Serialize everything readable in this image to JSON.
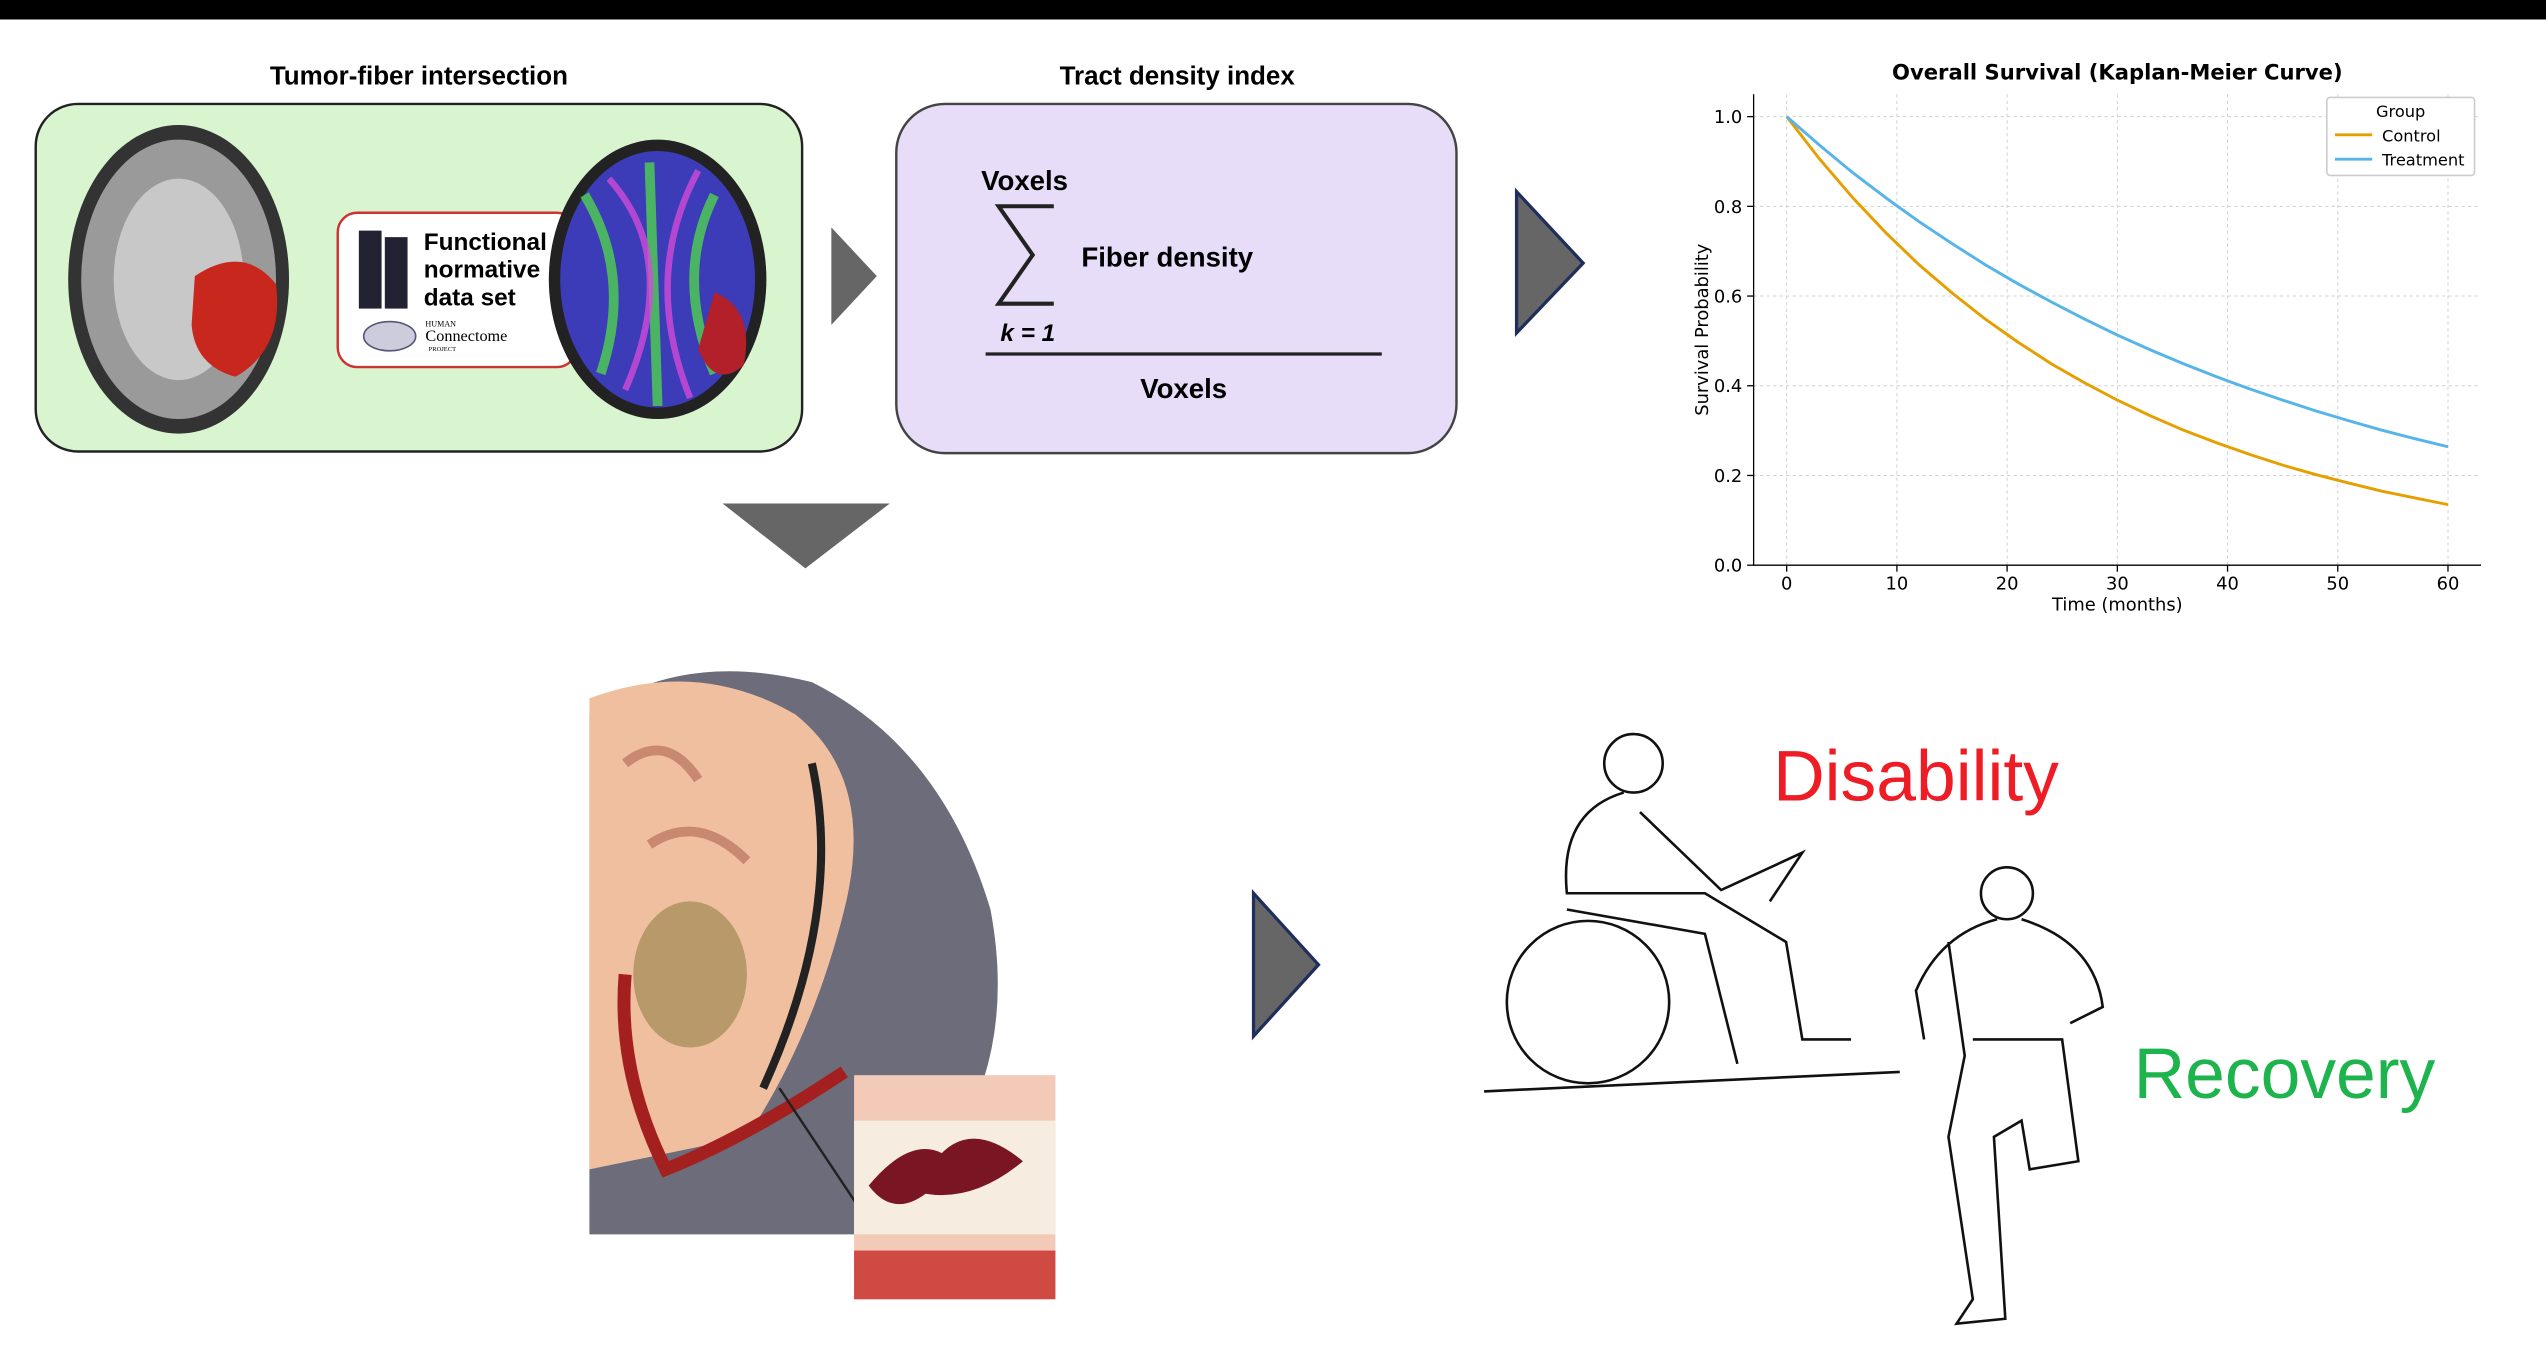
{
  "panels": {
    "intersection": {
      "title": "Tumor-fiber intersection",
      "dataset_lines": [
        "Functional",
        "normative",
        "data set"
      ],
      "logo_lines": [
        "HUMAN",
        "Connectome",
        "PROJECT"
      ]
    },
    "density": {
      "title": "Tract density index",
      "numerator_top": "Voxels",
      "numerator": "Fiber density",
      "index": "k = 1",
      "denominator": "Voxels"
    },
    "outcomes": {
      "disability": "Disability",
      "recovery": "Recovery"
    }
  },
  "chart_data": {
    "type": "line",
    "title": "Overall Survival (Kaplan-Meier Curve)",
    "x_label": "Time (months)",
    "y_label": "Survival Probability",
    "legend_title": "Group",
    "legend_loc": "upper right",
    "grid": true,
    "x": [
      0,
      3,
      6,
      9,
      12,
      15,
      18,
      21,
      24,
      27,
      30,
      33,
      36,
      39,
      42,
      45,
      48,
      51,
      54,
      57,
      60
    ],
    "series": [
      {
        "name": "Control",
        "color": "#e69f00",
        "values": [
          1.0,
          0.905,
          0.819,
          0.741,
          0.67,
          0.607,
          0.549,
          0.497,
          0.449,
          0.407,
          0.368,
          0.333,
          0.301,
          0.273,
          0.247,
          0.223,
          0.202,
          0.183,
          0.165,
          0.15,
          0.135
        ]
      },
      {
        "name": "Treatment",
        "color": "#56b4e9",
        "values": [
          1.0,
          0.936,
          0.875,
          0.819,
          0.766,
          0.717,
          0.67,
          0.627,
          0.587,
          0.549,
          0.513,
          0.48,
          0.449,
          0.42,
          0.393,
          0.368,
          0.344,
          0.322,
          0.301,
          0.282,
          0.264
        ]
      }
    ],
    "xlim": [
      -3,
      63
    ],
    "ylim": [
      0,
      1.05
    ],
    "xticks": [
      0,
      10,
      20,
      30,
      40,
      50,
      60
    ],
    "yticks": [
      {
        "value": 0,
        "label": "0.0"
      },
      0.2,
      0.4,
      0.6,
      0.8,
      {
        "value": 1,
        "label": "1.0"
      }
    ]
  }
}
